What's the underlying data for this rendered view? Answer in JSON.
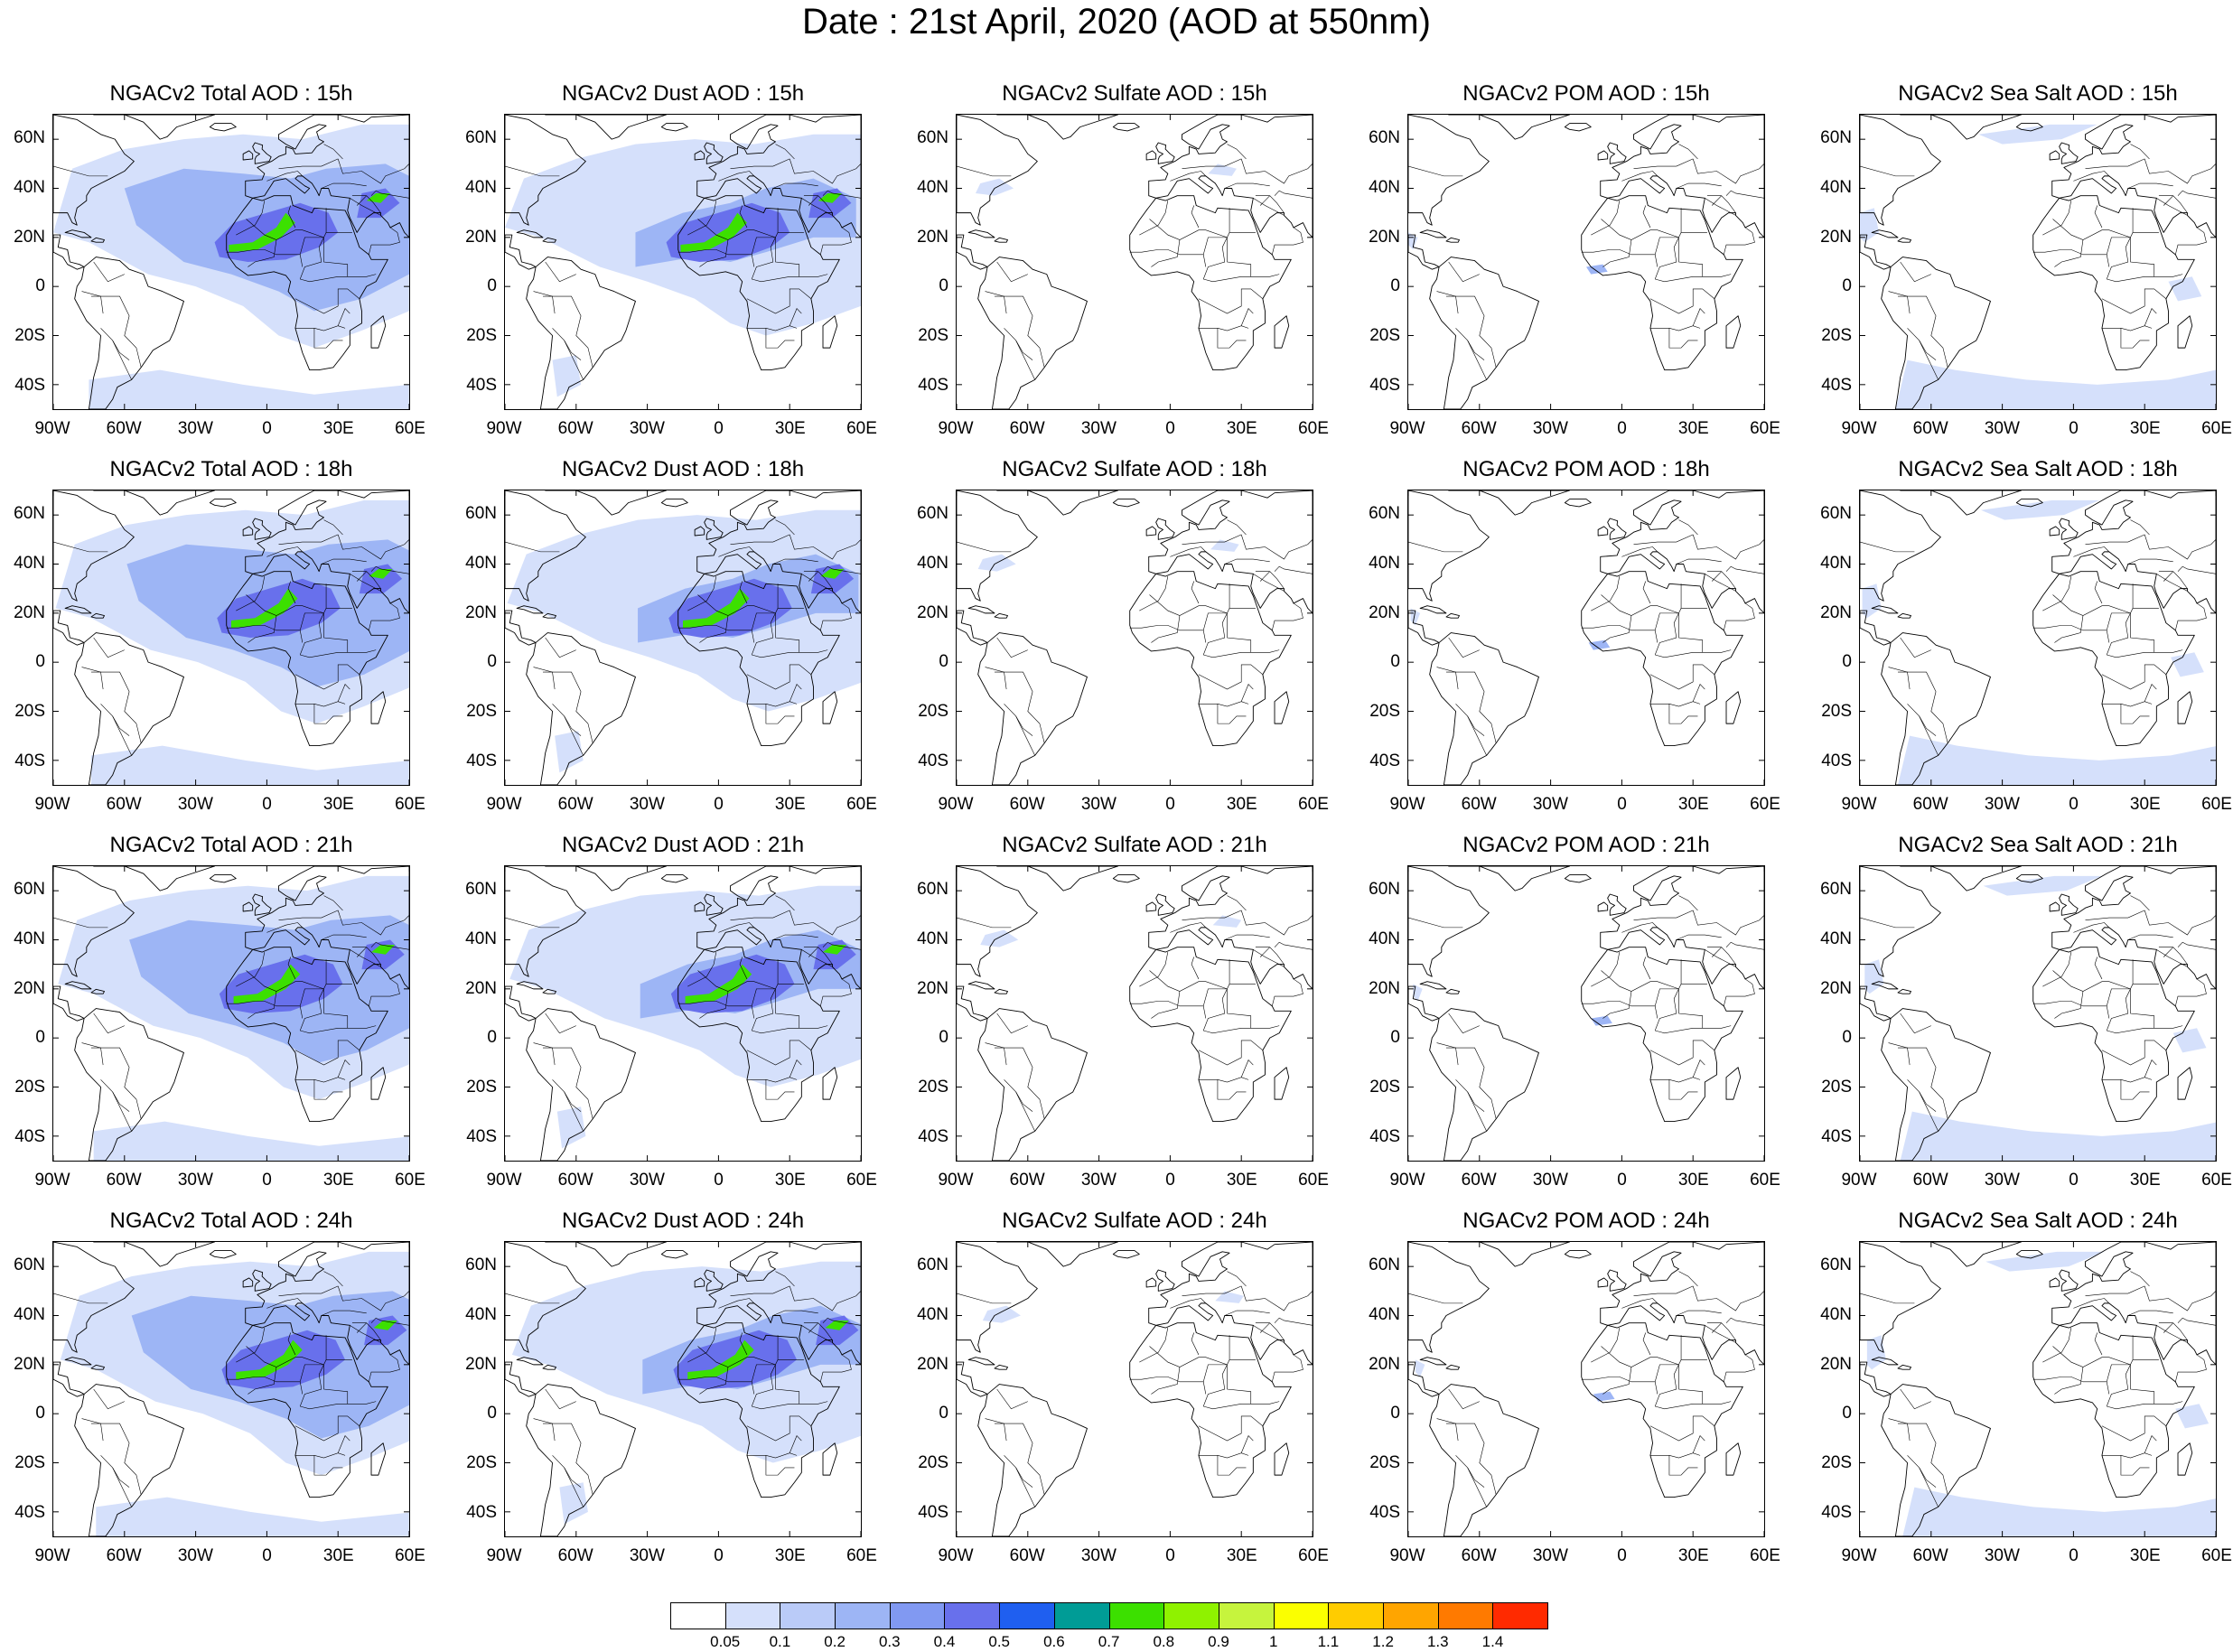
{
  "title": "Date : 21st April, 2020 (AOD at 550nm)",
  "lat_labels": [
    "60N",
    "40N",
    "20N",
    "0",
    "20S",
    "40S"
  ],
  "lat_values": [
    60,
    40,
    20,
    0,
    -20,
    -40
  ],
  "lon_labels": [
    "90W",
    "60W",
    "30W",
    "0",
    "30E",
    "60E"
  ],
  "lon_values": [
    -90,
    -60,
    -30,
    0,
    30,
    60
  ],
  "map_extent": {
    "lon_min": -90,
    "lon_max": 60,
    "lat_min": -50,
    "lat_max": 70
  },
  "rows": [
    "15h",
    "18h",
    "21h",
    "24h"
  ],
  "panels": [
    {
      "title": "NGACv2 Total AOD : 15h",
      "species": "total"
    },
    {
      "title": "NGACv2 Dust AOD : 15h",
      "species": "dust"
    },
    {
      "title": "NGACv2 Sulfate AOD : 15h",
      "species": "sulfate"
    },
    {
      "title": "NGACv2 POM AOD : 15h",
      "species": "pom"
    },
    {
      "title": "NGACv2 Sea Salt AOD : 15h",
      "species": "seasalt"
    },
    {
      "title": "NGACv2 Total AOD : 18h",
      "species": "total"
    },
    {
      "title": "NGACv2 Dust AOD : 18h",
      "species": "dust"
    },
    {
      "title": "NGACv2 Sulfate AOD : 18h",
      "species": "sulfate"
    },
    {
      "title": "NGACv2 POM AOD : 18h",
      "species": "pom"
    },
    {
      "title": "NGACv2 Sea Salt AOD : 18h",
      "species": "seasalt"
    },
    {
      "title": "NGACv2 Total AOD : 21h",
      "species": "total"
    },
    {
      "title": "NGACv2 Dust AOD : 21h",
      "species": "dust"
    },
    {
      "title": "NGACv2 Sulfate AOD : 21h",
      "species": "sulfate"
    },
    {
      "title": "NGACv2 POM AOD : 21h",
      "species": "pom"
    },
    {
      "title": "NGACv2 Sea Salt AOD : 21h",
      "species": "seasalt"
    },
    {
      "title": "NGACv2 Total AOD : 24h",
      "species": "total"
    },
    {
      "title": "NGACv2 Dust AOD : 24h",
      "species": "dust"
    },
    {
      "title": "NGACv2 Sulfate AOD : 24h",
      "species": "sulfate"
    },
    {
      "title": "NGACv2 POM AOD : 24h",
      "species": "pom"
    },
    {
      "title": "NGACv2 Sea Salt  AOD : 24h",
      "species": "seasalt"
    }
  ],
  "colorbar": {
    "colors": [
      "#ffffff",
      "#d5e0fb",
      "#bacbf8",
      "#9db5f5",
      "#8199f2",
      "#6870ec",
      "#1f5ff0",
      "#009c96",
      "#3ce000",
      "#8ff200",
      "#c6f43d",
      "#fbff00",
      "#ffcc00",
      "#ffa500",
      "#ff7a00",
      "#ff2a00"
    ],
    "labels": [
      "0.05",
      "0.1",
      "0.2",
      "0.3",
      "0.4",
      "0.5",
      "0.6",
      "0.7",
      "0.8",
      "0.9",
      "1",
      "1.1",
      "1.2",
      "1.3",
      "1.4"
    ]
  },
  "colors": {
    "aod_low": "#d5e0fb",
    "aod_mid": "#9db5f5",
    "aod_high": "#6870ec",
    "aod_peak": "#3ce000",
    "coastline": "#000000"
  }
}
